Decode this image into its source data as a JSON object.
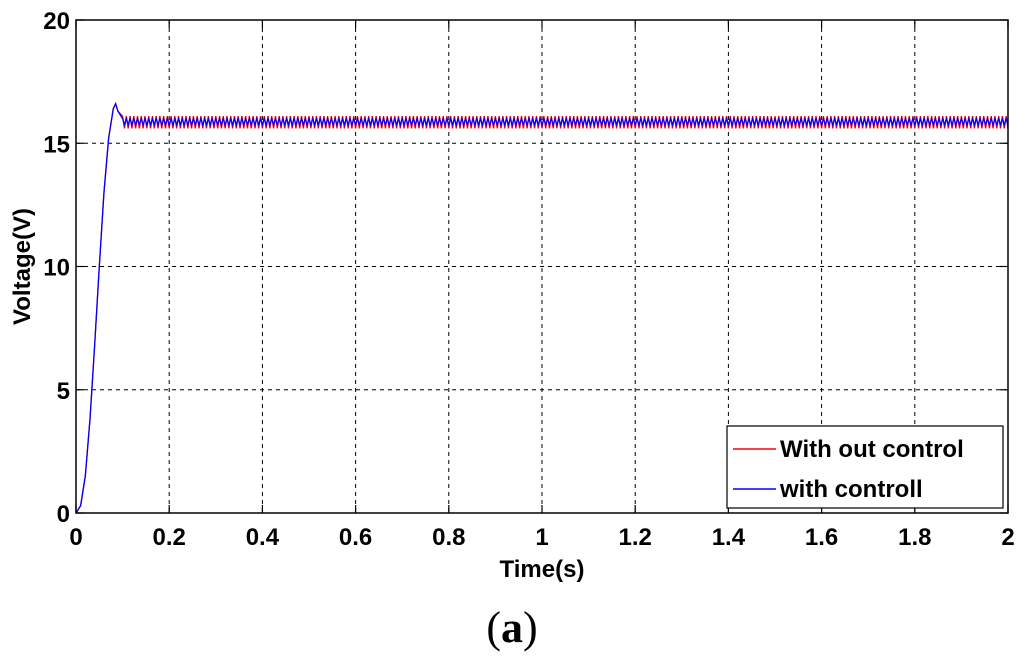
{
  "panel_label": {
    "open": "(",
    "letter": "a",
    "close": ")"
  },
  "colors": {
    "without_control": "#ff0000",
    "with_control": "#0000ff",
    "axes": "#000000",
    "grid": "#000000"
  },
  "chart_data": {
    "type": "line",
    "title": "",
    "xlabel": "Time(s)",
    "ylabel": "Voltage(V)",
    "xlim": [
      0,
      2
    ],
    "ylim": [
      0,
      20
    ],
    "xticks": [
      "0",
      "0.2",
      "0.4",
      "0.6",
      "0.8",
      "1",
      "1.2",
      "1.4",
      "1.6",
      "1.8",
      "2"
    ],
    "yticks": [
      "0",
      "5",
      "10",
      "15",
      "20"
    ],
    "grid": true,
    "legend_position": "bottom-right",
    "series": [
      {
        "name": "With out control",
        "color": "#ff0000",
        "x": [
          0,
          0.01,
          0.02,
          0.03,
          0.04,
          0.05,
          0.06,
          0.07,
          0.08,
          0.085,
          0.09,
          0.1,
          0.12,
          0.15,
          0.2,
          2
        ],
        "y": [
          0,
          0.3,
          1.5,
          3.8,
          6.8,
          10.0,
          13.0,
          15.2,
          16.4,
          16.6,
          16.3,
          15.9,
          16.0,
          15.9,
          15.9,
          15.9
        ],
        "ripple_band": [
          15.6,
          16.1
        ],
        "ripple_start": 0.1
      },
      {
        "name": "with controll",
        "color": "#0000ff",
        "x": [
          0,
          0.01,
          0.02,
          0.03,
          0.04,
          0.05,
          0.06,
          0.07,
          0.08,
          0.085,
          0.09,
          0.1,
          0.12,
          0.15,
          0.2,
          2
        ],
        "y": [
          0,
          0.3,
          1.5,
          3.8,
          6.8,
          10.0,
          13.0,
          15.2,
          16.4,
          16.6,
          16.3,
          15.85,
          15.95,
          15.9,
          15.9,
          15.9
        ],
        "ripple_band": [
          15.75,
          16.0
        ],
        "ripple_start": 0.1
      }
    ]
  }
}
